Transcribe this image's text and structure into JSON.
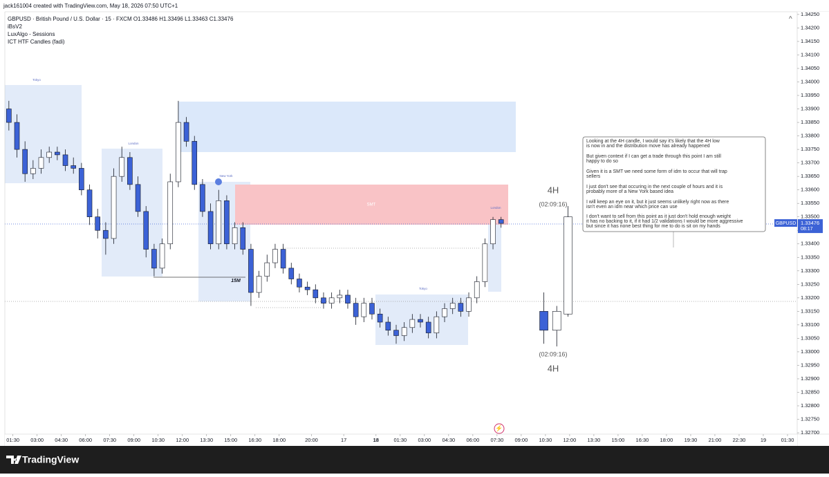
{
  "header": {
    "credit": "jack161004 created with TradingView.com, May 18, 2026 07:50 UTC+1",
    "symbol": "GBPUSD · British Pound / U.S. Dollar · 15 · FXCM  O1.33486  H1.33496  L1.33463  C1.33476",
    "indicators": [
      "iBsV2",
      "LuxAlgo - Sessions",
      "ICT HTF Candles (fadi)"
    ]
  },
  "chart_data": {
    "type": "candlestick",
    "up_color": "#ffffff",
    "down_color": "#3c62d6",
    "wick_color": "#131722",
    "x": [
      0,
      1,
      2,
      3,
      4,
      5,
      6,
      7,
      8,
      9,
      10,
      11,
      12,
      13,
      14,
      15,
      16,
      17,
      18,
      19,
      20,
      21,
      22,
      23,
      24,
      25,
      26,
      27,
      28,
      29,
      30,
      31,
      32,
      33,
      34,
      35,
      36,
      37,
      38,
      39,
      40,
      41,
      42,
      43,
      44,
      45,
      46,
      47,
      48,
      49,
      50,
      51,
      52,
      53,
      54,
      55,
      56,
      57,
      58,
      59,
      60,
      61
    ],
    "open": [
      1.339,
      1.3385,
      1.3375,
      1.3366,
      1.3368,
      1.3372,
      1.3374,
      1.3373,
      1.3369,
      1.3368,
      1.336,
      1.335,
      1.3345,
      1.3342,
      1.3365,
      1.3372,
      1.3362,
      1.3352,
      1.3338,
      1.3331,
      1.334,
      1.3363,
      1.3385,
      1.3378,
      1.3362,
      1.3352,
      1.334,
      1.3356,
      1.334,
      1.3346,
      1.3338,
      1.3322,
      1.3328,
      1.3333,
      1.3338,
      1.3331,
      1.3327,
      1.3324,
      1.3323,
      1.332,
      1.3318,
      1.332,
      1.3321,
      1.3318,
      1.3313,
      1.3318,
      1.3314,
      1.3311,
      1.3308,
      1.3306,
      1.3309,
      1.3312,
      1.3311,
      1.3307,
      1.3313,
      1.3316,
      1.3318,
      1.3315,
      1.332,
      1.3326,
      1.334,
      1.3349
    ],
    "high": [
      1.3393,
      1.3388,
      1.3378,
      1.3371,
      1.3375,
      1.3376,
      1.3376,
      1.3375,
      1.3372,
      1.337,
      1.3362,
      1.3353,
      1.3348,
      1.3368,
      1.3376,
      1.3374,
      1.3365,
      1.3354,
      1.334,
      1.3342,
      1.3366,
      1.3393,
      1.3387,
      1.338,
      1.3364,
      1.3355,
      1.336,
      1.3358,
      1.3348,
      1.3348,
      1.334,
      1.333,
      1.3336,
      1.334,
      1.334,
      1.3333,
      1.3329,
      1.3326,
      1.3325,
      1.3322,
      1.3322,
      1.3323,
      1.3323,
      1.332,
      1.332,
      1.332,
      1.3316,
      1.3313,
      1.331,
      1.3311,
      1.3314,
      1.3314,
      1.3313,
      1.3315,
      1.3318,
      1.332,
      1.332,
      1.3322,
      1.3328,
      1.3342,
      1.335,
      1.335
    ],
    "low": [
      1.3382,
      1.3372,
      1.3363,
      1.3364,
      1.3366,
      1.337,
      1.3371,
      1.3367,
      1.3366,
      1.3358,
      1.3347,
      1.3342,
      1.3336,
      1.334,
      1.3363,
      1.336,
      1.335,
      1.3335,
      1.3328,
      1.3329,
      1.3338,
      1.3361,
      1.3376,
      1.336,
      1.335,
      1.3338,
      1.3338,
      1.3338,
      1.3338,
      1.3336,
      1.3317,
      1.332,
      1.3326,
      1.3331,
      1.3329,
      1.3325,
      1.3322,
      1.3321,
      1.3318,
      1.3316,
      1.3316,
      1.3318,
      1.3316,
      1.331,
      1.3311,
      1.3312,
      1.3309,
      1.3306,
      1.3303,
      1.3304,
      1.3307,
      1.3309,
      1.3305,
      1.3305,
      1.3311,
      1.3314,
      1.3313,
      1.3313,
      1.3318,
      1.3324,
      1.3338,
      1.3346
    ],
    "close": [
      1.3385,
      1.3375,
      1.3366,
      1.3368,
      1.3372,
      1.3374,
      1.3373,
      1.3369,
      1.3368,
      1.336,
      1.335,
      1.3345,
      1.3342,
      1.3365,
      1.3372,
      1.3362,
      1.3352,
      1.3338,
      1.3331,
      1.334,
      1.3363,
      1.3385,
      1.3378,
      1.3362,
      1.3352,
      1.334,
      1.3356,
      1.334,
      1.3346,
      1.3338,
      1.3322,
      1.3328,
      1.3333,
      1.3338,
      1.3331,
      1.3327,
      1.3324,
      1.3323,
      1.332,
      1.3318,
      1.332,
      1.3321,
      1.3318,
      1.3313,
      1.3318,
      1.3314,
      1.3311,
      1.3308,
      1.3306,
      1.3309,
      1.3312,
      1.3311,
      1.3307,
      1.3313,
      1.3316,
      1.3318,
      1.3315,
      1.332,
      1.3326,
      1.334,
      1.3349,
      1.33476
    ],
    "htf": {
      "x": [
        66.3,
        67.9,
        69.3
      ],
      "open": [
        1.3315,
        1.3308,
        1.3314
      ],
      "high": [
        1.3322,
        1.3317,
        1.3354
      ],
      "low": [
        1.3303,
        1.3302,
        1.3313
      ],
      "close": [
        1.3308,
        1.3315,
        1.335
      ],
      "label": "4H",
      "countdown": "(02:09:16)"
    },
    "xlim": [
      -0.5,
      97.7
    ],
    "ylim": [
      1.32695,
      1.3426
    ],
    "xticks": [
      {
        "value": 0.5,
        "label": "01:30"
      },
      {
        "value": 3.5,
        "label": "03:00"
      },
      {
        "value": 6.5,
        "label": "04:30"
      },
      {
        "value": 9.5,
        "label": "06:00"
      },
      {
        "value": 12.5,
        "label": "07:30"
      },
      {
        "value": 15.5,
        "label": "09:00"
      },
      {
        "value": 18.5,
        "label": "10:30"
      },
      {
        "value": 21.5,
        "label": "12:00"
      },
      {
        "value": 24.5,
        "label": "13:30"
      },
      {
        "value": 27.5,
        "label": "15:00"
      },
      {
        "value": 30.5,
        "label": "16:30"
      },
      {
        "value": 33.5,
        "label": "18:00"
      },
      {
        "value": 37.5,
        "label": "20:00"
      },
      {
        "value": 41.5,
        "label": "17"
      },
      {
        "value": 45.5,
        "label": "18"
      },
      {
        "value": 48.5,
        "label": "01:30"
      },
      {
        "value": 51.5,
        "label": "03:00"
      },
      {
        "value": 54.5,
        "label": "04:30"
      },
      {
        "value": 57.5,
        "label": "06:00"
      },
      {
        "value": 60.5,
        "label": "07:30"
      },
      {
        "value": 63.5,
        "label": "09:00"
      },
      {
        "value": 66.5,
        "label": "10:30"
      },
      {
        "value": 69.5,
        "label": "12:00"
      },
      {
        "value": 72.5,
        "label": "13:30"
      },
      {
        "value": 75.5,
        "label": "15:00"
      },
      {
        "value": 78.5,
        "label": "16:30"
      },
      {
        "value": 81.5,
        "label": "18:00"
      },
      {
        "value": 84.5,
        "label": "19:30"
      },
      {
        "value": 87.5,
        "label": "21:00"
      },
      {
        "value": 90.5,
        "label": "22:30"
      },
      {
        "value": 93.5,
        "label": "19"
      },
      {
        "value": 96.5,
        "label": "01:30"
      }
    ],
    "yticks": [
      {
        "value": 1.327,
        "label": "1.32700"
      },
      {
        "value": 1.3275,
        "label": "1.32750"
      },
      {
        "value": 1.328,
        "label": "1.32800"
      },
      {
        "value": 1.3285,
        "label": "1.32850"
      },
      {
        "value": 1.329,
        "label": "1.32900"
      },
      {
        "value": 1.3295,
        "label": "1.32950"
      },
      {
        "value": 1.33,
        "label": "1.33000"
      },
      {
        "value": 1.3305,
        "label": "1.33050"
      },
      {
        "value": 1.331,
        "label": "1.33100"
      },
      {
        "value": 1.3315,
        "label": "1.33150"
      },
      {
        "value": 1.332,
        "label": "1.33200"
      },
      {
        "value": 1.3325,
        "label": "1.33250"
      },
      {
        "value": 1.333,
        "label": "1.33300"
      },
      {
        "value": 1.3335,
        "label": "1.33350"
      },
      {
        "value": 1.334,
        "label": "1.33400"
      },
      {
        "value": 1.3345,
        "label": "1.33450"
      },
      {
        "value": 1.335,
        "label": "1.33500"
      },
      {
        "value": 1.3355,
        "label": "1.33550"
      },
      {
        "value": 1.336,
        "label": "1.33600"
      },
      {
        "value": 1.3365,
        "label": "1.33650"
      },
      {
        "value": 1.337,
        "label": "1.33700"
      },
      {
        "value": 1.3375,
        "label": "1.33750"
      },
      {
        "value": 1.338,
        "label": "1.33800"
      },
      {
        "value": 1.3385,
        "label": "1.33850"
      },
      {
        "value": 1.339,
        "label": "1.33900"
      },
      {
        "value": 1.3395,
        "label": "1.33950"
      },
      {
        "value": 1.34,
        "label": "1.34000"
      },
      {
        "value": 1.3405,
        "label": "1.34050"
      },
      {
        "value": 1.341,
        "label": "1.34100"
      },
      {
        "value": 1.3415,
        "label": "1.34150"
      },
      {
        "value": 1.342,
        "label": "1.34200"
      },
      {
        "value": 1.3425,
        "label": "1.34250"
      }
    ],
    "price_label": {
      "name": "GBPUSD",
      "value": 1.33476,
      "countdown": "08:17"
    },
    "sessions": [
      "Tokyo",
      "London",
      "New York",
      "Tokyo",
      "London"
    ],
    "zone_label": "SMT",
    "structure_label": "15M"
  },
  "note": {
    "paragraphs": [
      [
        "Looking at the 4H candle, I would say it's likely that the 4H low",
        "is now in and the distribution move has already happened"
      ],
      [
        "But given context if I can get a trade through this point I am still",
        "happy to do so"
      ],
      [
        "Given it is a SMT we need some form of idm to occur that will trap",
        "sellers"
      ],
      [
        "I just don't see that occuring in the next couple of hours and it is",
        "probably more of a New York based idea"
      ],
      [
        "I will keep an eye on it, but it just seems unlikely right now as there",
        "isn't even an idm near which price can use"
      ],
      [
        "I don't want to sell from this point as it just don't hold enough weight",
        "it has no backing to it, if it had 1/2 validations I would be more aggressive",
        "but since it has none best thing for me to do is sit on my hands"
      ]
    ]
  },
  "footer": {
    "brand": "TradingView"
  }
}
